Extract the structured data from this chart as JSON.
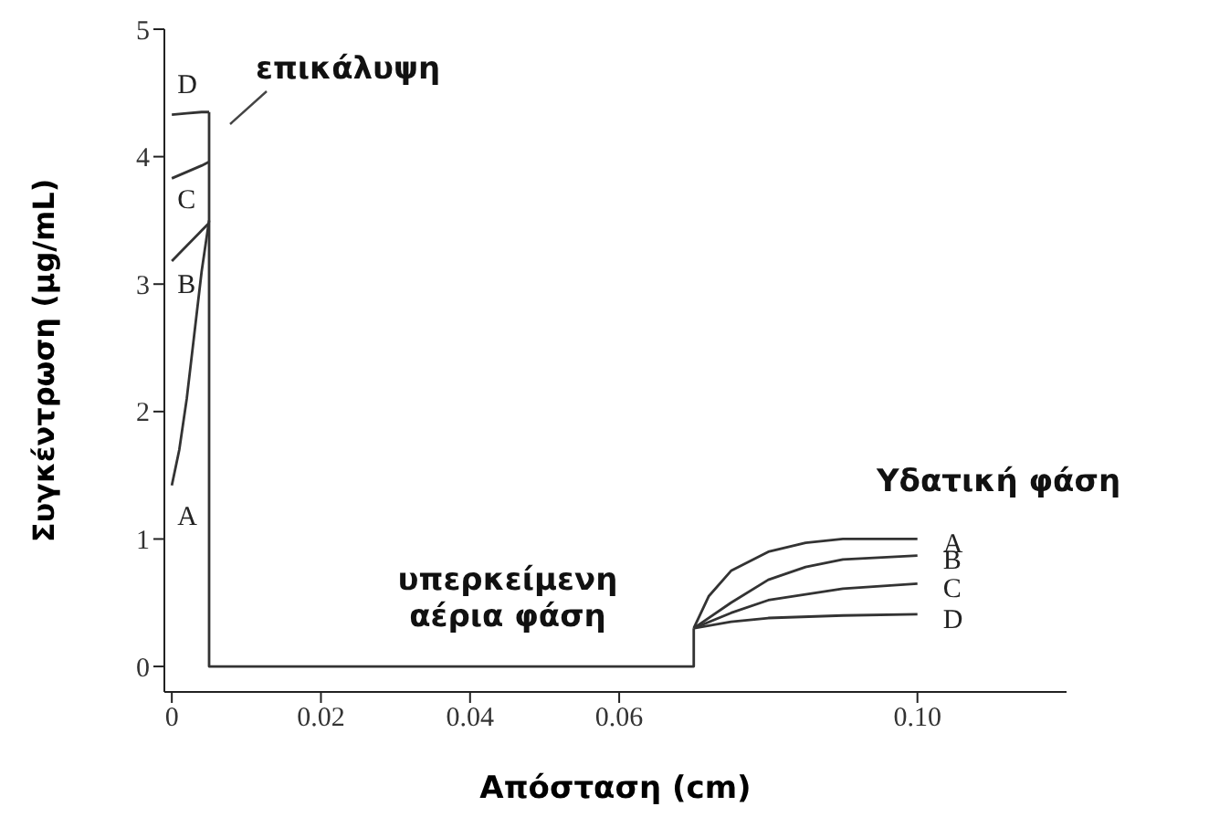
{
  "chart_data": {
    "type": "line",
    "xlabel": "Απόσταση (cm)",
    "ylabel": "Συγκέντρωση (μg/mL)",
    "annotations": [
      "επικάλυψη",
      "υπερκείμενη αέρια φάση",
      "Υδατική φάση"
    ],
    "xlim": [
      -0.001,
      0.12
    ],
    "ylim": [
      -0.2,
      5
    ],
    "xticks": [
      0,
      0.02,
      0.04,
      0.06,
      {
        "value": 0.1,
        "label": "0.10"
      }
    ],
    "yticks": [
      0,
      1,
      2,
      3,
      4,
      5
    ],
    "marker": "none",
    "line_style": "solid",
    "grid": false,
    "series": [
      {
        "name": "A",
        "color": "#333333",
        "x": [
          0,
          0.001,
          0.002,
          0.003,
          0.004,
          0.005,
          null,
          0.07,
          0.072,
          0.075,
          0.08,
          0.085,
          0.09,
          0.1
        ],
        "values": [
          1.42,
          1.7,
          2.1,
          2.6,
          3.1,
          3.5,
          null,
          0.3,
          0.55,
          0.75,
          0.9,
          0.97,
          1.0,
          1.0
        ]
      },
      {
        "name": "B",
        "color": "#333333",
        "x": [
          0,
          0.002,
          0.004,
          0.005,
          null,
          0.07,
          0.075,
          0.08,
          0.085,
          0.09,
          0.1
        ],
        "values": [
          3.18,
          3.3,
          3.42,
          3.48,
          null,
          0.3,
          0.5,
          0.68,
          0.78,
          0.84,
          0.87
        ]
      },
      {
        "name": "C",
        "color": "#333333",
        "x": [
          0,
          0.002,
          0.004,
          0.005,
          null,
          0.07,
          0.075,
          0.08,
          0.09,
          0.1
        ],
        "values": [
          3.83,
          3.88,
          3.93,
          3.96,
          null,
          0.3,
          0.42,
          0.52,
          0.61,
          0.65
        ]
      },
      {
        "name": "D",
        "color": "#333333",
        "x": [
          0,
          0.002,
          0.004,
          0.005,
          null,
          0.07,
          0.075,
          0.08,
          0.09,
          0.1
        ],
        "values": [
          4.33,
          4.34,
          4.35,
          4.35,
          null,
          0.3,
          0.35,
          0.38,
          0.4,
          0.41
        ]
      },
      {
        "color": "#333333",
        "x": [
          0.005,
          0.005,
          0.07,
          0.07
        ],
        "values": [
          4.35,
          0,
          0,
          0.3
        ]
      }
    ]
  }
}
